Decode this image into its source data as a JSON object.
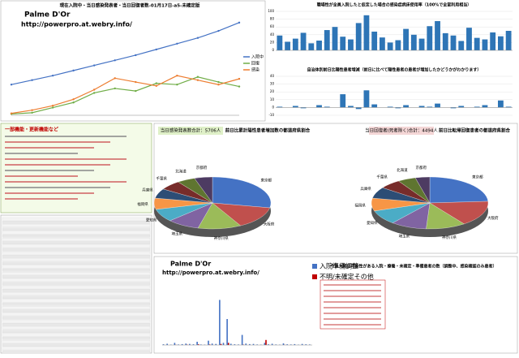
{
  "watermark": {
    "name": "Palme D'Or",
    "url": "http://powerpro.at.webry.info/"
  },
  "notes": {
    "heading": "一部機能・更新機能など"
  },
  "chart_data": [
    {
      "type": "line",
      "title": "現在入院中・当日感染発表者・当日回復者数-01月17日-a5-未確定版",
      "categories": [
        null,
        null,
        null,
        null,
        null,
        null,
        null,
        null,
        null,
        null,
        null,
        null
      ],
      "ylim": [
        0,
        16000
      ],
      "series": [
        {
          "name": "入院中",
          "color": "#4472c4",
          "values": [
            4800,
            5500,
            6200,
            7000,
            7800,
            8600,
            9400,
            10300,
            11200,
            12100,
            13200,
            14500
          ]
        },
        {
          "name": "回復",
          "color": "#70ad47",
          "values": [
            200,
            400,
            1200,
            2000,
            3500,
            4200,
            3800,
            5000,
            4800,
            6000,
            5200,
            4500
          ]
        },
        {
          "name": "感染",
          "color": "#ed7d31",
          "values": [
            300,
            800,
            1500,
            2500,
            4000,
            5800,
            5200,
            4600,
            6200,
            5500,
            4800,
            5700
          ]
        }
      ]
    },
    {
      "type": "bar",
      "title": "職場性が全員入院したと仮定した場合の感染症病床使用率（100%で全室利用相当）",
      "values": [
        38,
        22,
        30,
        45,
        18,
        25,
        52,
        60,
        35,
        28,
        70,
        90,
        48,
        33,
        20,
        26,
        55,
        40,
        30,
        62,
        75,
        44,
        38,
        24,
        58,
        32,
        28,
        46,
        36,
        50
      ],
      "color": "#2e75b6",
      "ylim": [
        0,
        100
      ],
      "yticks": [
        0,
        20,
        40,
        60,
        80,
        100
      ],
      "grid": true
    },
    {
      "type": "bar",
      "title": "自治体別前日比陽性患者増減（前日に比べて陽性患者の患者が増加したかどうかがわかります）",
      "values": [
        1,
        0,
        2,
        -1,
        0,
        3,
        1,
        0,
        17,
        2,
        -2,
        22,
        4,
        0,
        1,
        -1,
        3,
        0,
        2,
        1,
        5,
        0,
        -1,
        2,
        0,
        1,
        3,
        0,
        9,
        1
      ],
      "color": "#2e75b6",
      "ylim": [
        -10,
        40
      ],
      "yticks": [
        -10,
        0,
        10,
        20,
        30,
        40
      ],
      "grid": true
    },
    {
      "type": "pie",
      "subtitle": "当日感染発表数合計：5706人",
      "title": "前日比累計陽性患者増加数の都道府県割合",
      "categories": [
        "東京都",
        "大阪府",
        "神奈川県",
        "埼玉県",
        "愛知県",
        "福岡県",
        "兵庫県",
        "千葉県",
        "北海道",
        "京都府"
      ],
      "values": [
        28,
        14,
        12,
        9,
        8,
        7,
        6,
        6,
        5,
        5
      ],
      "colors": [
        "#4472c4",
        "#c0504d",
        "#9bbb59",
        "#8064a2",
        "#4bacc6",
        "#f79646",
        "#2c4d75",
        "#772c2a",
        "#5f7530",
        "#4d3b62"
      ]
    },
    {
      "type": "pie",
      "subtitle": "当日回復者(死者除く)合計：4494人",
      "title": "前日比転帰回復患者の都道府県割合",
      "categories": [
        "東京都",
        "大阪府",
        "神奈川県",
        "埼玉県",
        "愛知県",
        "福岡県",
        "兵庫県",
        "千葉県",
        "北海道",
        "京都府"
      ],
      "values": [
        24,
        16,
        11,
        10,
        9,
        8,
        7,
        6,
        5,
        4
      ],
      "colors": [
        "#4472c4",
        "#c0504d",
        "#9bbb59",
        "#8064a2",
        "#4bacc6",
        "#f79646",
        "#2c4d75",
        "#772c2a",
        "#5f7530",
        "#4d3b62"
      ]
    },
    {
      "type": "bar",
      "title": "今後入院の可能性がある入院・療養・未確定・準備患者の数（調整中、感染確認のみ患者）",
      "ylim": [
        0,
        1800
      ],
      "series": [
        {
          "name": "入院準備調整",
          "color": "#4472c4",
          "values": [
            20,
            35,
            10,
            60,
            15,
            25,
            40,
            30,
            20,
            90,
            15,
            10,
            120,
            40,
            30,
            1250,
            60,
            720,
            35,
            20,
            15,
            280,
            40,
            25,
            30,
            15,
            10,
            60,
            20,
            35,
            15,
            10,
            45,
            20,
            15,
            25,
            10,
            30,
            20,
            15
          ]
        },
        {
          "name": "不明/未確定その他",
          "color": "#c00000",
          "values": [
            0,
            0,
            0,
            5,
            0,
            0,
            10,
            0,
            0,
            20,
            0,
            0,
            15,
            0,
            0,
            30,
            0,
            60,
            0,
            0,
            0,
            10,
            0,
            0,
            0,
            0,
            0,
            140,
            0,
            0,
            0,
            0,
            5,
            0,
            0,
            0,
            0,
            0,
            0,
            0
          ]
        }
      ]
    }
  ]
}
